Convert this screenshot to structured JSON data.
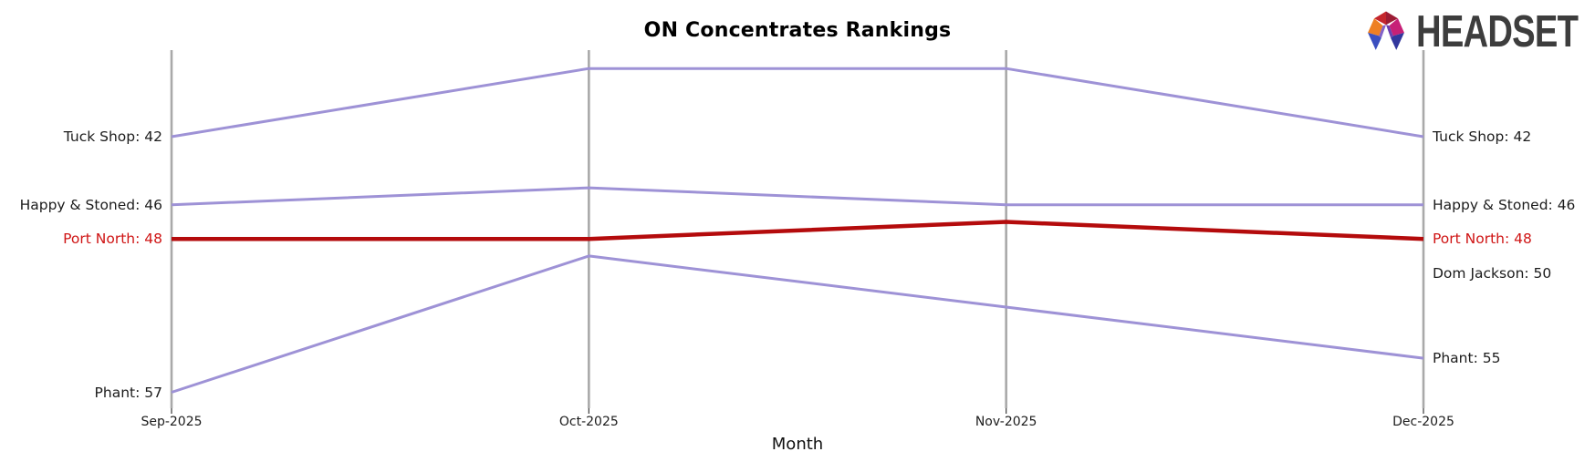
{
  "title": "ON Concentrates Rankings",
  "brand": {
    "name": "HEADSET",
    "text_color": "#3d3d3d",
    "logo_palette": [
      "#c4262c",
      "#9c1c34",
      "#ee7f23",
      "#c72077",
      "#3b4fc0",
      "#32379e",
      "#8262c9",
      "#6b3fb0"
    ]
  },
  "colors": {
    "axis_gray": "#a9a9a9",
    "tick_gray": "#3a3a3a",
    "line_purple": "#9e92d6",
    "line_red": "#b40b0c",
    "label_red": "#cf1414",
    "label_dark": "#1c1c1c"
  },
  "chart_data": {
    "type": "line",
    "subtype": "bump-ranking",
    "title": "ON Concentrates Rankings",
    "xlabel": "Month",
    "x": [
      "Sep-2025",
      "Oct-2025",
      "Nov-2025",
      "Dec-2025"
    ],
    "y_axis": "rank (lower is better, inverted axis)",
    "ylim": [
      37,
      58
    ],
    "grid": "vertical axis line per month, no horizontal gridlines",
    "legend_position": "none (direct side labels)",
    "series": [
      {
        "name": "Tuck Shop",
        "values": [
          42,
          38,
          38,
          42
        ],
        "color": "#9e92d6",
        "width": 3,
        "highlight": false
      },
      {
        "name": "Happy & Stoned",
        "values": [
          46,
          45,
          46,
          46
        ],
        "color": "#9e92d6",
        "width": 3,
        "highlight": false
      },
      {
        "name": "Port North",
        "values": [
          48,
          48,
          47,
          48
        ],
        "color": "#b40b0c",
        "width": 4.5,
        "highlight": true
      },
      {
        "name": "Dom Jackson",
        "values": [
          null,
          null,
          null,
          50
        ],
        "color": "#9e92d6",
        "width": 3,
        "highlight": false
      },
      {
        "name": "Phant",
        "values": [
          57,
          49,
          52,
          55
        ],
        "color": "#9e92d6",
        "width": 3,
        "highlight": false
      }
    ],
    "left_labels": [
      {
        "text": "Tuck Shop: 42",
        "rank": 42,
        "highlight": false
      },
      {
        "text": "Happy & Stoned: 46",
        "rank": 46,
        "highlight": false
      },
      {
        "text": "Port North: 48",
        "rank": 48,
        "highlight": true
      },
      {
        "text": "Phant: 57",
        "rank": 57,
        "highlight": false
      }
    ],
    "right_labels": [
      {
        "text": "Tuck Shop: 42",
        "rank": 42,
        "highlight": false
      },
      {
        "text": "Happy & Stoned: 46",
        "rank": 46,
        "highlight": false
      },
      {
        "text": "Port North: 48",
        "rank": 48,
        "highlight": true
      },
      {
        "text": "Dom Jackson: 50",
        "rank": 50,
        "highlight": false
      },
      {
        "text": "Phant: 55",
        "rank": 55,
        "highlight": false
      }
    ]
  }
}
